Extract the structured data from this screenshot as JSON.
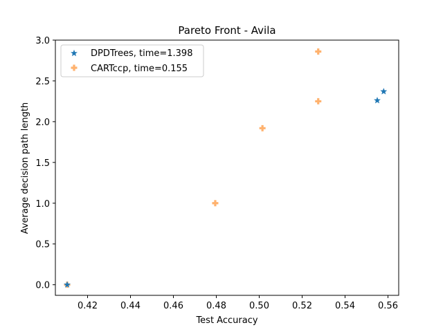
{
  "chart_data": {
    "type": "scatter",
    "title": "Pareto Front - Avila",
    "xlabel": "Test Accuracy",
    "ylabel": "Average decision path length",
    "xlim": [
      0.405,
      0.565
    ],
    "ylim": [
      -0.13,
      3.0
    ],
    "x_ticks": [
      "0.42",
      "0.44",
      "0.46",
      "0.48",
      "0.50",
      "0.52",
      "0.54",
      "0.56"
    ],
    "y_ticks": [
      "0.0",
      "0.5",
      "1.0",
      "1.5",
      "2.0",
      "2.5",
      "3.0"
    ],
    "grid": false,
    "legend_position": "upper-left",
    "series": [
      {
        "name": "DPDTrees, time=1.398",
        "marker": "star",
        "color": "#1f77b4",
        "points": [
          [
            0.4105,
            0.0
          ],
          [
            0.555,
            2.26
          ],
          [
            0.558,
            2.37
          ]
        ]
      },
      {
        "name": "CARTccp, time=0.155",
        "marker": "plus",
        "color": "#ff7f0e",
        "points": [
          [
            0.4105,
            0.0
          ],
          [
            0.4795,
            1.0
          ],
          [
            0.5015,
            1.92
          ],
          [
            0.5275,
            2.25
          ],
          [
            0.5275,
            2.86
          ]
        ]
      }
    ]
  }
}
